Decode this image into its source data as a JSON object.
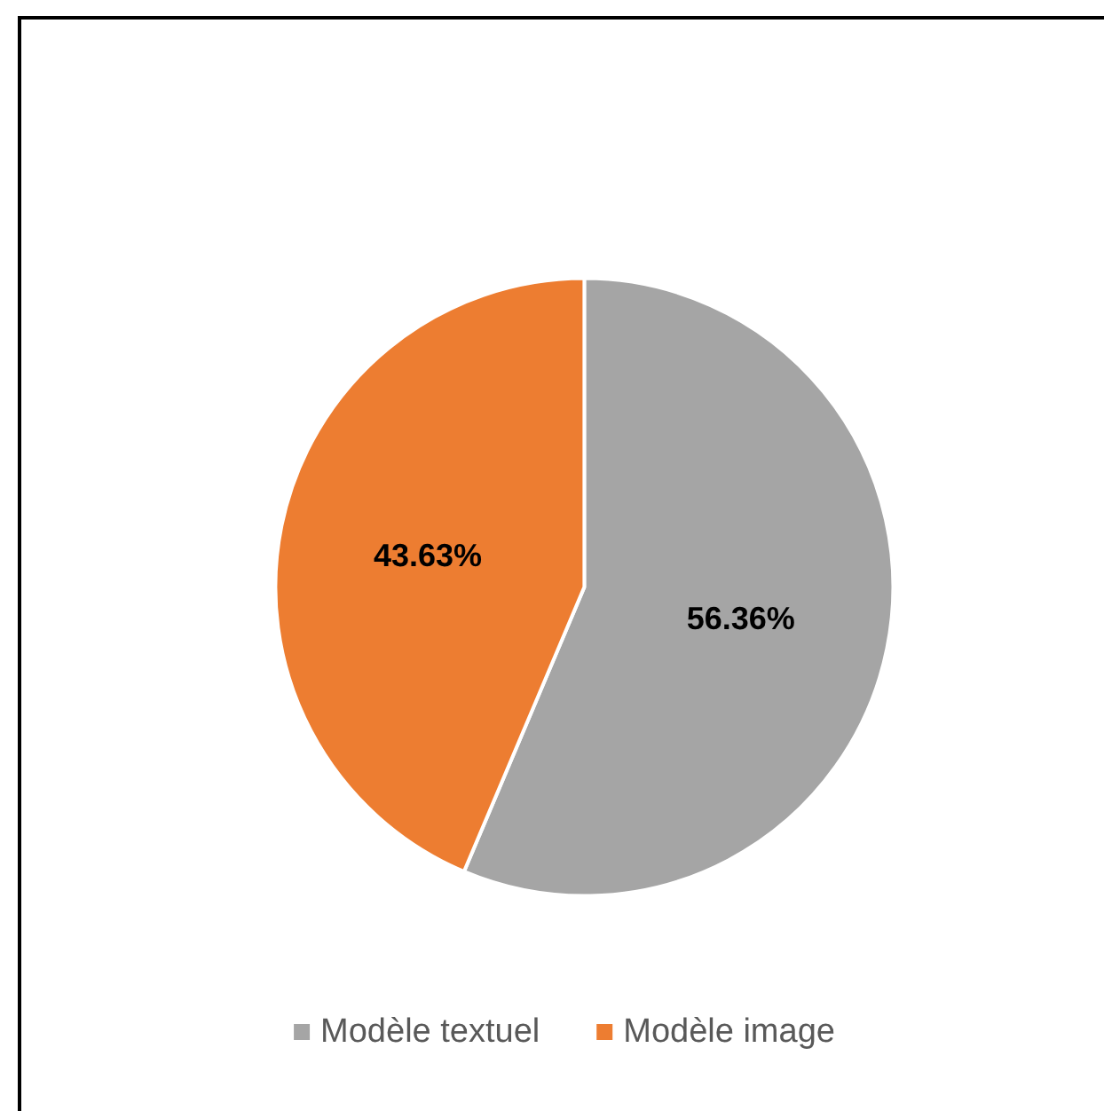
{
  "chart_data": {
    "type": "pie",
    "categories": [
      "Modèle textuel",
      "Modèle image"
    ],
    "values": [
      56.36,
      43.63
    ],
    "colors": [
      "#a5a5a5",
      "#ed7d31"
    ],
    "value_labels": [
      "56.36%",
      "43.63%"
    ],
    "legend": "bottom"
  }
}
